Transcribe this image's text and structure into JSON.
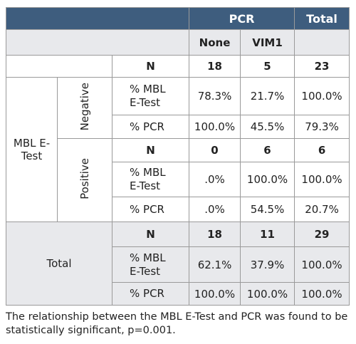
{
  "table": {
    "header_group": "PCR",
    "header_total": "Total",
    "subheaders": [
      "None",
      "VIM1"
    ],
    "top_row": [
      "N",
      "18",
      "5",
      "23"
    ],
    "sections": [
      {
        "label": "MBL E-Test",
        "subgroups": [
          {
            "label": "Negative",
            "rows": [
              [
                "% MBL E-Test",
                "78.3%",
                "21.7%",
                "100.0%"
              ],
              [
                "% PCR",
                "100.0%",
                "45.5%",
                "79.3%"
              ]
            ]
          },
          {
            "label": "Positive",
            "rows": [
              [
                "N",
                "0",
                "6",
                "6"
              ],
              [
                "% MBL E-Test",
                ".0%",
                "100.0%",
                "100.0%"
              ],
              [
                "% PCR",
                ".0%",
                "54.5%",
                "20.7%"
              ]
            ]
          }
        ]
      },
      {
        "label": "Total",
        "rows": [
          [
            "N",
            "18",
            "11",
            "29"
          ],
          [
            "% MBL E-Test",
            "62.1%",
            "37.9%",
            "100.0%"
          ],
          [
            "% PCR",
            "100.0%",
            "100.0%",
            "100.0%"
          ]
        ]
      }
    ]
  },
  "footnote": "The relationship between the MBL E-Test and PCR was found to be statistically significant, p=0.001."
}
